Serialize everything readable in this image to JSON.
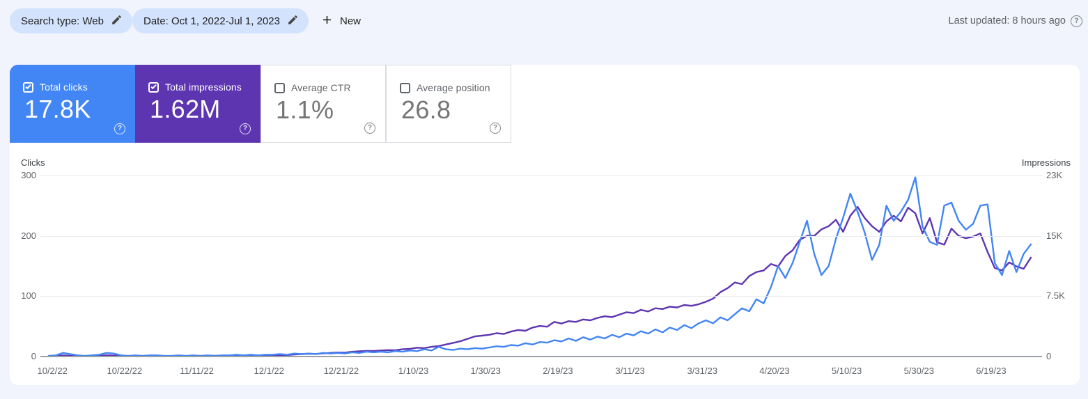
{
  "topbar": {
    "search_type_chip": "Search type: Web",
    "date_chip": "Date: Oct 1, 2022-Jul 1, 2023",
    "new_label": "New",
    "last_updated": "Last updated: 8 hours ago"
  },
  "icons": {
    "help_glyph": "?"
  },
  "cards": [
    {
      "label": "Total clicks",
      "value": "17.8K",
      "checked": true,
      "color": "#4285f4"
    },
    {
      "label": "Total impressions",
      "value": "1.62M",
      "checked": true,
      "color": "#5e35b1"
    },
    {
      "label": "Average CTR",
      "value": "1.1%",
      "checked": false,
      "color": "#ffffff"
    },
    {
      "label": "Average position",
      "value": "26.8",
      "checked": false,
      "color": "#ffffff"
    }
  ],
  "chart_data": {
    "type": "line",
    "point_interval_days": 2,
    "left_axis": {
      "title": "Clicks",
      "ticks": [
        "0",
        "100",
        "200",
        "300"
      ],
      "max": 300
    },
    "right_axis": {
      "title": "Impressions",
      "ticks": [
        "0",
        "7.5K",
        "15K",
        "23K"
      ],
      "max": 22500
    },
    "x_tick_labels": [
      "10/2/22",
      "10/22/22",
      "11/11/22",
      "12/1/22",
      "12/21/22",
      "1/10/23",
      "1/30/23",
      "2/19/23",
      "3/11/23",
      "3/31/23",
      "4/20/23",
      "5/10/23",
      "5/30/23",
      "6/19/23"
    ],
    "series": [
      {
        "name": "Total clicks",
        "color": "#4285f4",
        "axis": "left",
        "values": [
          1,
          2,
          6,
          4,
          2,
          1,
          2,
          3,
          6,
          5,
          2,
          1,
          2,
          1,
          2,
          2,
          1,
          1,
          2,
          1,
          2,
          1,
          2,
          1,
          2,
          2,
          3,
          2,
          3,
          2,
          3,
          3,
          4,
          3,
          5,
          4,
          5,
          4,
          6,
          5,
          6,
          5,
          7,
          6,
          8,
          7,
          8,
          7,
          9,
          8,
          10,
          9,
          12,
          10,
          16,
          12,
          11,
          13,
          12,
          14,
          13,
          15,
          17,
          16,
          19,
          18,
          22,
          20,
          24,
          23,
          27,
          25,
          30,
          26,
          32,
          28,
          33,
          30,
          36,
          32,
          38,
          35,
          42,
          38,
          45,
          40,
          48,
          44,
          52,
          47,
          55,
          60,
          55,
          65,
          60,
          70,
          80,
          75,
          95,
          88,
          115,
          150,
          130,
          155,
          190,
          225,
          170,
          135,
          150,
          195,
          230,
          270,
          240,
          205,
          160,
          185,
          250,
          225,
          240,
          260,
          297,
          215,
          190,
          185,
          250,
          255,
          225,
          210,
          220,
          250,
          252,
          155,
          135,
          175,
          140,
          170,
          186
        ]
      },
      {
        "name": "Total impressions",
        "color": "#5e35b1",
        "axis": "right",
        "values": [
          40,
          60,
          150,
          90,
          50,
          40,
          60,
          80,
          160,
          120,
          60,
          40,
          50,
          40,
          50,
          60,
          50,
          60,
          70,
          60,
          80,
          70,
          90,
          80,
          100,
          90,
          110,
          100,
          120,
          110,
          130,
          150,
          200,
          180,
          250,
          300,
          350,
          320,
          400,
          450,
          500,
          480,
          600,
          650,
          700,
          680,
          750,
          800,
          780,
          900,
          950,
          1100,
          1050,
          1200,
          1300,
          1500,
          1700,
          1900,
          2200,
          2500,
          2600,
          2700,
          2900,
          2800,
          3100,
          3300,
          3200,
          3600,
          3800,
          3700,
          4300,
          4100,
          4400,
          4300,
          4600,
          4500,
          4800,
          5000,
          4900,
          5200,
          5500,
          5400,
          5800,
          5600,
          6000,
          5900,
          6200,
          6100,
          6400,
          6300,
          6500,
          6800,
          7200,
          8000,
          8500,
          9200,
          9000,
          10000,
          10500,
          10700,
          11500,
          11200,
          12500,
          13200,
          14500,
          15000,
          15000,
          15800,
          16200,
          17000,
          15500,
          17500,
          18600,
          17200,
          16200,
          15500,
          16800,
          17500,
          16800,
          18500,
          17800,
          15300,
          17200,
          14200,
          13900,
          15900,
          15000,
          14700,
          14900,
          15300,
          13000,
          11000,
          10700,
          11700,
          11200,
          10900,
          12300
        ]
      }
    ]
  }
}
